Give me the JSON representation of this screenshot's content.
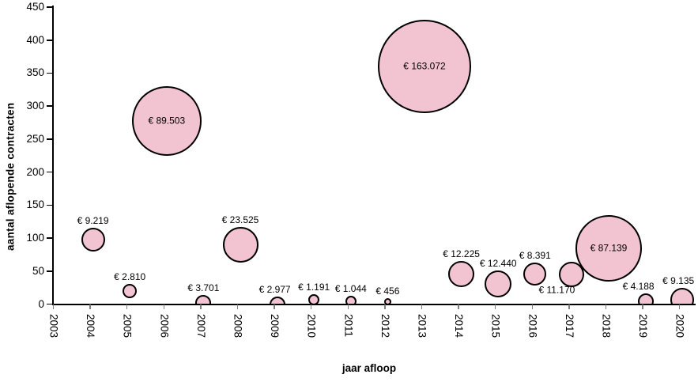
{
  "chart_data": {
    "type": "scatter",
    "variant": "bubble",
    "title": "",
    "xlabel": "jaar afloop",
    "ylabel": "aantal aflopende contracten",
    "x_ticks": [
      2003,
      2004,
      2005,
      2006,
      2007,
      2008,
      2009,
      2010,
      2011,
      2012,
      2013,
      2014,
      2015,
      2016,
      2017,
      2018,
      2019,
      2020
    ],
    "y_ticks": [
      0,
      50,
      100,
      150,
      200,
      250,
      300,
      350,
      400,
      450
    ],
    "xlim": [
      2003,
      2020
    ],
    "ylim": [
      0,
      450
    ],
    "grid": false,
    "legend": false,
    "bubble_fill": "#f2c3d0",
    "bubble_stroke": "#000000",
    "axis_color": "#000000",
    "x_tick_color": "#808080",
    "size_encoding": "bubble area proportional to euro value shown in label",
    "points": [
      {
        "year": 2004,
        "contracts": 98,
        "euro_label": "€ 9.219",
        "euro_value": 9219,
        "r": 15,
        "label_pos": "above"
      },
      {
        "year": 2005,
        "contracts": 20,
        "euro_label": "€ 2.810",
        "euro_value": 2810,
        "r": 9,
        "label_pos": "above"
      },
      {
        "year": 2006,
        "contracts": 277,
        "euro_label": "€ 89.503",
        "euro_value": 89503,
        "r": 44,
        "label_pos": "inside"
      },
      {
        "year": 2007,
        "contracts": 2,
        "euro_label": "€ 3.701",
        "euro_value": 3701,
        "r": 10,
        "label_pos": "above"
      },
      {
        "year": 2008,
        "contracts": 90,
        "euro_label": "€ 23.525",
        "euro_value": 23525,
        "r": 22.5,
        "label_pos": "above"
      },
      {
        "year": 2009,
        "contracts": 0,
        "euro_label": "€ 2.977",
        "euro_value": 2977,
        "r": 10,
        "label_pos": "above",
        "dx": -3
      },
      {
        "year": 2010,
        "contracts": 6,
        "euro_label": "€ 1.191",
        "euro_value": 1191,
        "r": 7,
        "label_pos": "above"
      },
      {
        "year": 2011,
        "contracts": 4,
        "euro_label": "€ 1.044",
        "euro_value": 1044,
        "r": 7,
        "label_pos": "above"
      },
      {
        "year": 2012,
        "contracts": 4,
        "euro_label": "€ 456",
        "euro_value": 456,
        "r": 4.5,
        "label_pos": "above"
      },
      {
        "year": 2013,
        "contracts": 360,
        "euro_label": "€ 163.072",
        "euro_value": 163072,
        "r": 59,
        "label_pos": "inside"
      },
      {
        "year": 2014,
        "contracts": 46,
        "euro_label": "€ 12.225",
        "euro_value": 12225,
        "r": 16.5,
        "label_pos": "above"
      },
      {
        "year": 2015,
        "contracts": 30,
        "euro_label": "€ 12.440",
        "euro_value": 12440,
        "r": 17,
        "label_pos": "above"
      },
      {
        "year": 2016,
        "contracts": 46,
        "euro_label": "€ 8.391",
        "euro_value": 8391,
        "r": 14.5,
        "label_pos": "above"
      },
      {
        "year": 2017,
        "contracts": 45,
        "euro_label": "€ 11.170",
        "euro_value": 11170,
        "r": 16,
        "label_pos": "offset",
        "dx": -19,
        "dy": 20
      },
      {
        "year": 2018,
        "contracts": 84,
        "euro_label": "€ 87.139",
        "euro_value": 87139,
        "r": 42,
        "label_pos": "inside"
      },
      {
        "year": 2019,
        "contracts": 4,
        "euro_label": "€ 4.188",
        "euro_value": 4188,
        "r": 10,
        "label_pos": "above",
        "dx": -9
      },
      {
        "year": 2020,
        "contracts": 6,
        "euro_label": "€ 9.135",
        "euro_value": 9135,
        "r": 15,
        "label_pos": "above",
        "dx": -5
      }
    ]
  }
}
